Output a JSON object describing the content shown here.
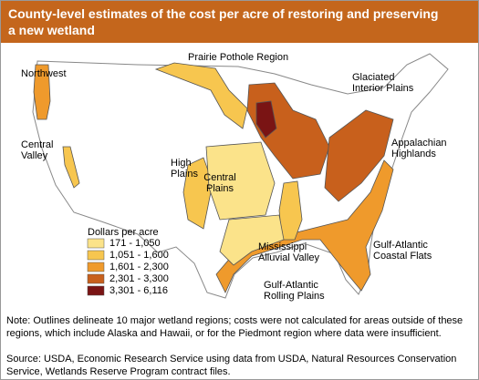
{
  "title": [
    "County-level estimates of the cost per acre of restoring and preserving",
    "a new wetland"
  ],
  "regions": [
    {
      "lines": [
        "Northwest"
      ],
      "x": 0,
      "y": 0
    },
    {
      "lines": [
        "Central",
        "Valley"
      ]
    },
    {
      "lines": [
        "Prairie Pothole Region"
      ]
    },
    {
      "lines": [
        "Glaciated",
        "Interior Plains"
      ]
    },
    {
      "lines": [
        "High",
        "Plains"
      ]
    },
    {
      "lines": [
        "Central",
        "Plains"
      ]
    },
    {
      "lines": [
        "Appalachian",
        "Highlands"
      ]
    },
    {
      "lines": [
        "Gulf-Atlantic",
        "Coastal Flats"
      ]
    },
    {
      "lines": [
        "Mississippi",
        "Alluvial Valley"
      ]
    },
    {
      "lines": [
        "Gulf-Atlantic",
        "Rolling Plains"
      ]
    }
  ],
  "legend": {
    "title": "Dollars per acre",
    "items": [
      {
        "label": "171 - 1,050",
        "color": "#fbe38a"
      },
      {
        "label": "1,051 - 1,600",
        "color": "#f7c64f"
      },
      {
        "label": "1,601 - 2,300",
        "color": "#ef9a2c"
      },
      {
        "label": "2,301 - 3,300",
        "color": "#c8601c"
      },
      {
        "label": "3,301 - 6,116",
        "color": "#7a1414"
      }
    ]
  },
  "note": "Note: Outlines delineate 10 major wetland regions; costs were not calculated for areas outside of these regions, which include Alaska and Hawaii, or for the Piedmont region where data were insufficient.",
  "source": "Source: USDA, Economic Research Service using data from USDA, Natural Resources Conservation Service, Wetlands Reserve Program contract files."
}
